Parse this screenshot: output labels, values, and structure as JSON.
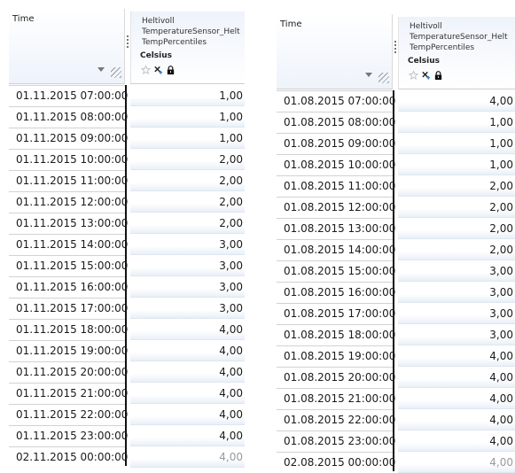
{
  "left_table": {
    "time_header": "Time",
    "value_header": {
      "line1": "Heltivoll",
      "line2": "TemperatureSensor_Helt",
      "line3": "TempPercentiles",
      "unit": "Celsius"
    },
    "rows": [
      {
        "time": "01.11.2015 07:00:00",
        "value": "1,00"
      },
      {
        "time": "01.11.2015 08:00:00",
        "value": "1,00"
      },
      {
        "time": "01.11.2015 09:00:00",
        "value": "1,00"
      },
      {
        "time": "01.11.2015 10:00:00",
        "value": "2,00"
      },
      {
        "time": "01.11.2015 11:00:00",
        "value": "2,00"
      },
      {
        "time": "01.11.2015 12:00:00",
        "value": "2,00"
      },
      {
        "time": "01.11.2015 13:00:00",
        "value": "2,00"
      },
      {
        "time": "01.11.2015 14:00:00",
        "value": "3,00"
      },
      {
        "time": "01.11.2015 15:00:00",
        "value": "3,00"
      },
      {
        "time": "01.11.2015 16:00:00",
        "value": "3,00"
      },
      {
        "time": "01.11.2015 17:00:00",
        "value": "3,00"
      },
      {
        "time": "01.11.2015 18:00:00",
        "value": "4,00"
      },
      {
        "time": "01.11.2015 19:00:00",
        "value": "4,00"
      },
      {
        "time": "01.11.2015 20:00:00",
        "value": "4,00"
      },
      {
        "time": "01.11.2015 21:00:00",
        "value": "4,00"
      },
      {
        "time": "01.11.2015 22:00:00",
        "value": "4,00"
      },
      {
        "time": "01.11.2015 23:00:00",
        "value": "4,00"
      },
      {
        "time": "02.11.2015 00:00:00",
        "value": "4,00"
      }
    ]
  },
  "right_table": {
    "time_header": "Time",
    "value_header": {
      "line1": "Heltivoll",
      "line2": "TemperatureSensor_Helt",
      "line3": "TempPercentiles",
      "unit": "Celsius"
    },
    "rows": [
      {
        "time": "01.08.2015 07:00:00",
        "value": "4,00"
      },
      {
        "time": "01.08.2015 08:00:00",
        "value": "1,00"
      },
      {
        "time": "01.08.2015 09:00:00",
        "value": "1,00"
      },
      {
        "time": "01.08.2015 10:00:00",
        "value": "1,00"
      },
      {
        "time": "01.08.2015 11:00:00",
        "value": "2,00"
      },
      {
        "time": "01.08.2015 12:00:00",
        "value": "2,00"
      },
      {
        "time": "01.08.2015 13:00:00",
        "value": "2,00"
      },
      {
        "time": "01.08.2015 14:00:00",
        "value": "2,00"
      },
      {
        "time": "01.08.2015 15:00:00",
        "value": "3,00"
      },
      {
        "time": "01.08.2015 16:00:00",
        "value": "3,00"
      },
      {
        "time": "01.08.2015 17:00:00",
        "value": "3,00"
      },
      {
        "time": "01.08.2015 18:00:00",
        "value": "3,00"
      },
      {
        "time": "01.08.2015 19:00:00",
        "value": "4,00"
      },
      {
        "time": "01.08.2015 20:00:00",
        "value": "4,00"
      },
      {
        "time": "01.08.2015 21:00:00",
        "value": "4,00"
      },
      {
        "time": "01.08.2015 22:00:00",
        "value": "4,00"
      },
      {
        "time": "01.08.2015 23:00:00",
        "value": "4,00"
      },
      {
        "time": "02.08.2015 00:00:00",
        "value": "4,00"
      }
    ]
  },
  "icons": [
    "star-icon",
    "remove-series-icon",
    "lock-icon"
  ],
  "colors": {
    "header_tint": "#eef3fb",
    "row_tint": "#e9f0f8",
    "separator": "#111111",
    "last_value": "#9a9a9a"
  }
}
